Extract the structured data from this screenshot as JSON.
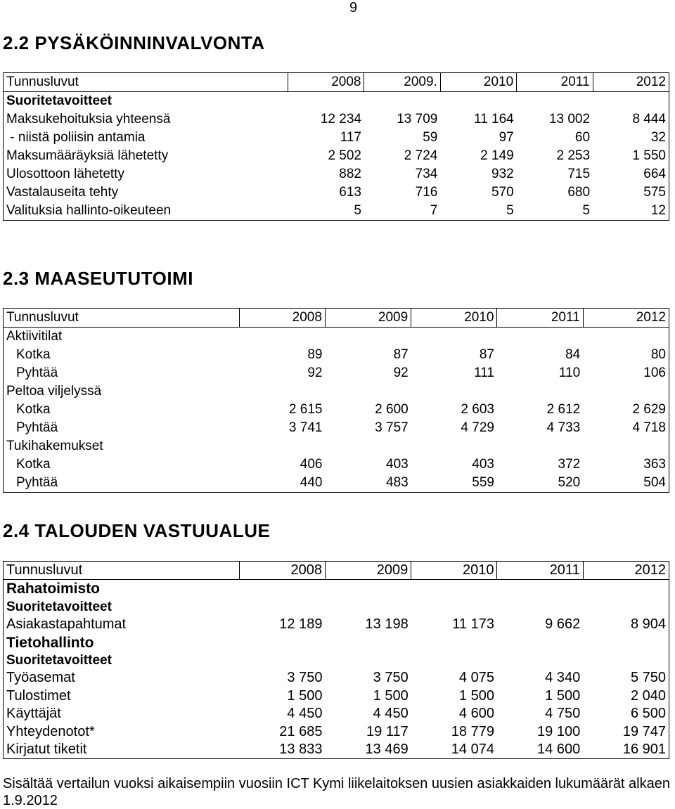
{
  "page_number": "9",
  "sections": [
    {
      "title": "2.2 PYSÄKÖINNINVALVONTA",
      "header": [
        "Tunnusluvut",
        "2008",
        "2009.",
        "2010",
        "2011",
        "2012"
      ],
      "rows": [
        {
          "label": "Suoritetavoitteet",
          "values": [
            "",
            "",
            "",
            "",
            ""
          ]
        },
        {
          "label": "Maksukehoituksia yhteensä",
          "values": [
            "12 234",
            "13 709",
            "11 164",
            "13 002",
            "8 444"
          ]
        },
        {
          "label": " - niistä poliisin antamia",
          "values": [
            "117",
            "59",
            "97",
            "60",
            "32"
          ]
        },
        {
          "label": "Maksumääräyksiä lähetetty",
          "values": [
            "2 502",
            "2 724",
            "2 149",
            "2 253",
            "1 550"
          ]
        },
        {
          "label": "Ulosottoon lähetetty",
          "values": [
            "882",
            "734",
            "932",
            "715",
            "664"
          ]
        },
        {
          "label": "Vastalauseita tehty",
          "values": [
            "613",
            "716",
            "570",
            "680",
            "575"
          ]
        },
        {
          "label": "Valituksia hallinto-oikeuteen",
          "values": [
            "5",
            "7",
            "5",
            "5",
            "12"
          ]
        }
      ]
    },
    {
      "title": "2.3 MAASEUTUTOIMI",
      "header": [
        "Tunnusluvut",
        "2008",
        "2009",
        "2010",
        "2011",
        "2012"
      ],
      "rows": [
        {
          "label": "Aktiivitilat",
          "values": [
            "",
            "",
            "",
            "",
            ""
          ]
        },
        {
          "label": "Kotka",
          "values": [
            "89",
            "87",
            "87",
            "84",
            "80"
          ]
        },
        {
          "label": "Pyhtää",
          "values": [
            "92",
            "92",
            "111",
            "110",
            "106"
          ]
        },
        {
          "label": "Peltoa viljelyssä",
          "values": [
            "",
            "",
            "",
            "",
            ""
          ]
        },
        {
          "label": "Kotka",
          "values": [
            "2 615",
            "2 600",
            "2 603",
            "2 612",
            "2 629"
          ]
        },
        {
          "label": "Pyhtää",
          "values": [
            "3 741",
            "3 757",
            "4 729",
            "4 733",
            "4 718"
          ]
        },
        {
          "label": "Tukihakemukset",
          "values": [
            "",
            "",
            "",
            "",
            ""
          ]
        },
        {
          "label": "Kotka",
          "values": [
            "406",
            "403",
            "403",
            "372",
            "363"
          ]
        },
        {
          "label": "Pyhtää",
          "values": [
            "440",
            "483",
            "559",
            "520",
            "504"
          ]
        }
      ]
    },
    {
      "title": "2.4 TALOUDEN VASTUUALUE",
      "header": [
        "Tunnusluvut",
        "2008",
        "2009",
        "2010",
        "2011",
        "2012"
      ],
      "rows": [
        {
          "label": "Rahatoimisto",
          "values": [
            "",
            "",
            "",
            "",
            ""
          ]
        },
        {
          "label": "Suoritetavoitteet",
          "values": [
            "",
            "",
            "",
            "",
            ""
          ]
        },
        {
          "label": "Asiakastapahtumat",
          "values": [
            "12 189",
            "13 198",
            "11 173",
            "9 662",
            "8 904"
          ]
        },
        {
          "label": "Tietohallinto",
          "values": [
            "",
            "",
            "",
            "",
            ""
          ]
        },
        {
          "label": "Suoritetavoitteet",
          "values": [
            "",
            "",
            "",
            "",
            ""
          ]
        },
        {
          "label": "Työasemat",
          "values": [
            "3 750",
            "3 750",
            "4 075",
            "4 340",
            "5 750"
          ]
        },
        {
          "label": "Tulostimet",
          "values": [
            "1 500",
            "1 500",
            "1 500",
            "1 500",
            "2 040"
          ]
        },
        {
          "label": "Käyttäjät",
          "values": [
            "4 450",
            "4 450",
            "4 600",
            "4 750",
            "6 500"
          ]
        },
        {
          "label": "Yhteydenotot*",
          "values": [
            "21 685",
            "19 117",
            "18 779",
            "19 100",
            "19 747"
          ]
        },
        {
          "label": "Kirjatut tiketit",
          "values": [
            "13 833",
            "13 469",
            "14 074",
            "14 600",
            "16 901"
          ]
        }
      ]
    }
  ],
  "footnote": "Sisältää vertailun vuoksi aikaisempiin vuosiin ICT Kymi liikelaitoksen uusien asiakkaiden lukumäärät alkaen 1.9.2012"
}
